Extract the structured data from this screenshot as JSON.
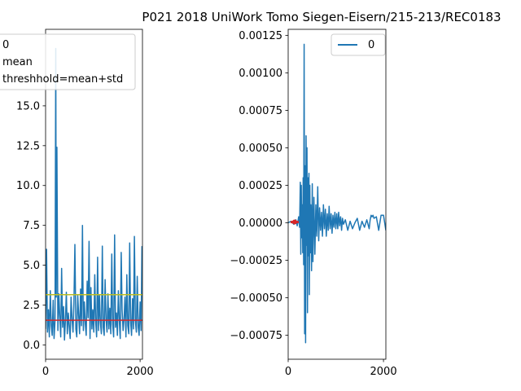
{
  "chart_data": [
    {
      "type": "line",
      "title": "P021 2018 UniWork Tomo Siegen-Eisern/215-213/REC0183",
      "xlim": [
        0,
        2050
      ],
      "ylim": [
        -0.9,
        19.8
      ],
      "xticks": [
        0,
        2000
      ],
      "yticks": [
        0.0,
        2.5,
        5.0,
        7.5,
        10.0,
        12.5,
        15.0
      ],
      "ytick_labels": [
        "0.0",
        "2.5",
        "5.0",
        "7.5",
        "10.0",
        "12.5",
        "15.0"
      ],
      "legend": {
        "placement": "upper-left",
        "entries": [
          "0",
          "mean",
          "threshhold=mean+std"
        ]
      },
      "series": [
        {
          "name": "0",
          "color": "#1f77b4",
          "x": [
            0,
            20,
            40,
            60,
            80,
            100,
            120,
            140,
            160,
            180,
            200,
            215,
            225,
            240,
            260,
            280,
            300,
            320,
            340,
            360,
            380,
            400,
            420,
            440,
            460,
            480,
            500,
            520,
            540,
            560,
            580,
            600,
            620,
            640,
            660,
            680,
            700,
            720,
            740,
            760,
            780,
            800,
            820,
            840,
            860,
            880,
            900,
            920,
            940,
            960,
            980,
            1000,
            1020,
            1040,
            1060,
            1080,
            1100,
            1120,
            1140,
            1160,
            1180,
            1200,
            1220,
            1240,
            1260,
            1280,
            1300,
            1320,
            1340,
            1360,
            1380,
            1400,
            1420,
            1440,
            1460,
            1480,
            1500,
            1520,
            1540,
            1560,
            1580,
            1600,
            1620,
            1640,
            1660,
            1680,
            1700,
            1720,
            1740,
            1760,
            1780,
            1800,
            1820,
            1840,
            1860,
            1880,
            1900,
            1920,
            1940,
            1960,
            1980,
            2000,
            2020,
            2040
          ],
          "y": [
            1.0,
            6.0,
            0.8,
            2.2,
            0.5,
            3.4,
            1.2,
            0.6,
            2.8,
            0.4,
            1.5,
            18.6,
            3.0,
            12.4,
            0.9,
            3.2,
            1.8,
            0.5,
            4.8,
            1.1,
            2.4,
            0.3,
            1.6,
            3.3,
            0.7,
            2.0,
            1.2,
            0.4,
            3.0,
            1.6,
            0.8,
            2.6,
            6.3,
            1.0,
            0.5,
            3.1,
            1.9,
            0.7,
            3.5,
            1.2,
            7.5,
            0.9,
            2.7,
            1.3,
            0.6,
            4.0,
            1.7,
            6.5,
            0.4,
            3.6,
            1.0,
            2.2,
            0.8,
            4.4,
            1.5,
            0.5,
            5.5,
            0.9,
            3.1,
            1.4,
            0.7,
            6.2,
            1.1,
            0.6,
            4.1,
            1.6,
            0.8,
            3.2,
            1.0,
            2.3,
            0.7,
            5.7,
            1.3,
            0.5,
            6.9,
            1.1,
            2.0,
            0.6,
            3.4,
            1.5,
            0.4,
            5.8,
            2.2,
            0.9,
            1.6,
            3.0,
            0.5,
            4.4,
            1.2,
            0.7,
            6.4,
            1.4,
            0.6,
            2.9,
            1.0,
            6.8,
            1.5,
            0.8,
            4.3,
            1.1,
            0.6,
            2.7,
            0.9,
            6.2
          ]
        },
        {
          "name": "mean",
          "color": "#d62728",
          "x": [
            0,
            2050
          ],
          "y": [
            1.55,
            1.55
          ]
        },
        {
          "name": "threshhold=mean+std",
          "color": "#bcbd22",
          "x": [
            0,
            2050
          ],
          "y": [
            3.15,
            3.15
          ]
        }
      ]
    },
    {
      "type": "line",
      "xlim": [
        0,
        2050
      ],
      "ylim": [
        -0.00091,
        0.00129
      ],
      "xticks": [
        0,
        2000
      ],
      "yticks": [
        -0.00075,
        -0.0005,
        -0.00025,
        0.0,
        0.00025,
        0.0005,
        0.00075,
        0.001,
        0.00125
      ],
      "ytick_labels": [
        "−0.00075",
        "−0.00050",
        "−0.00025",
        "0.00000",
        "0.00025",
        "0.00050",
        "0.00075",
        "0.00100",
        "0.00125"
      ],
      "legend": {
        "placement": "upper-right",
        "entries": [
          "0"
        ]
      },
      "series": [
        {
          "name": "0",
          "color": "#1f77b4",
          "x": [
            0,
            60,
            120,
            160,
            190,
            220,
            240,
            255,
            265,
            275,
            285,
            295,
            305,
            315,
            325,
            335,
            345,
            355,
            365,
            375,
            385,
            395,
            405,
            415,
            425,
            435,
            445,
            455,
            465,
            475,
            490,
            505,
            520,
            540,
            560,
            580,
            600,
            620,
            640,
            660,
            680,
            700,
            720,
            740,
            760,
            780,
            800,
            820,
            840,
            860,
            880,
            900,
            920,
            940,
            960,
            980,
            1000,
            1020,
            1040,
            1060,
            1080,
            1100,
            1120,
            1140,
            1160,
            1200,
            1250,
            1300,
            1350,
            1400,
            1450,
            1500,
            1550,
            1600,
            1650,
            1700,
            1720,
            1740,
            1760,
            1780,
            1800,
            1850,
            1900,
            1950,
            2000,
            2050
          ],
          "y": [
            0.0,
            1e-05,
            -1e-05,
            2e-05,
            -2e-05,
            4e-05,
            -3e-05,
            0.00027,
            -0.00021,
            0.00025,
            -0.0001,
            0.00012,
            -0.0002,
            0.0003,
            -0.00028,
            0.00119,
            -0.00074,
            0.00038,
            -0.0008,
            0.00058,
            -0.00015,
            0.0005,
            -0.0006,
            0.0003,
            -0.00022,
            0.00033,
            -0.00048,
            0.00025,
            -0.0002,
            0.00012,
            -0.00032,
            0.00026,
            -0.00026,
            0.00017,
            -0.00021,
            0.00012,
            -9e-05,
            0.00024,
            -0.00012,
            0.0001,
            -5e-05,
            7e-05,
            -9e-05,
            0.00012,
            -4e-05,
            9e-05,
            -9e-05,
            6e-05,
            -5e-05,
            0.00011,
            -4e-05,
            6e-05,
            -7e-05,
            5e-05,
            -3e-05,
            7e-05,
            -4e-05,
            6e-05,
            -4e-05,
            7e-05,
            -2e-05,
            4e-05,
            -5e-05,
            3e-05,
            -1e-05,
            2e-05,
            -5e-05,
            1e-05,
            -4e-05,
            0.0,
            3e-05,
            -5e-05,
            1e-05,
            -3e-05,
            2e-05,
            -4e-05,
            2e-05,
            5e-05,
            4e-05,
            5e-05,
            3e-05,
            4e-05,
            -5e-05,
            5e-05,
            5e-05,
            -5e-05
          ]
        },
        {
          "name": "",
          "color": "#d62728",
          "x": [
            50,
            220
          ],
          "y": [
            5e-06,
            5e-06
          ]
        }
      ]
    }
  ]
}
